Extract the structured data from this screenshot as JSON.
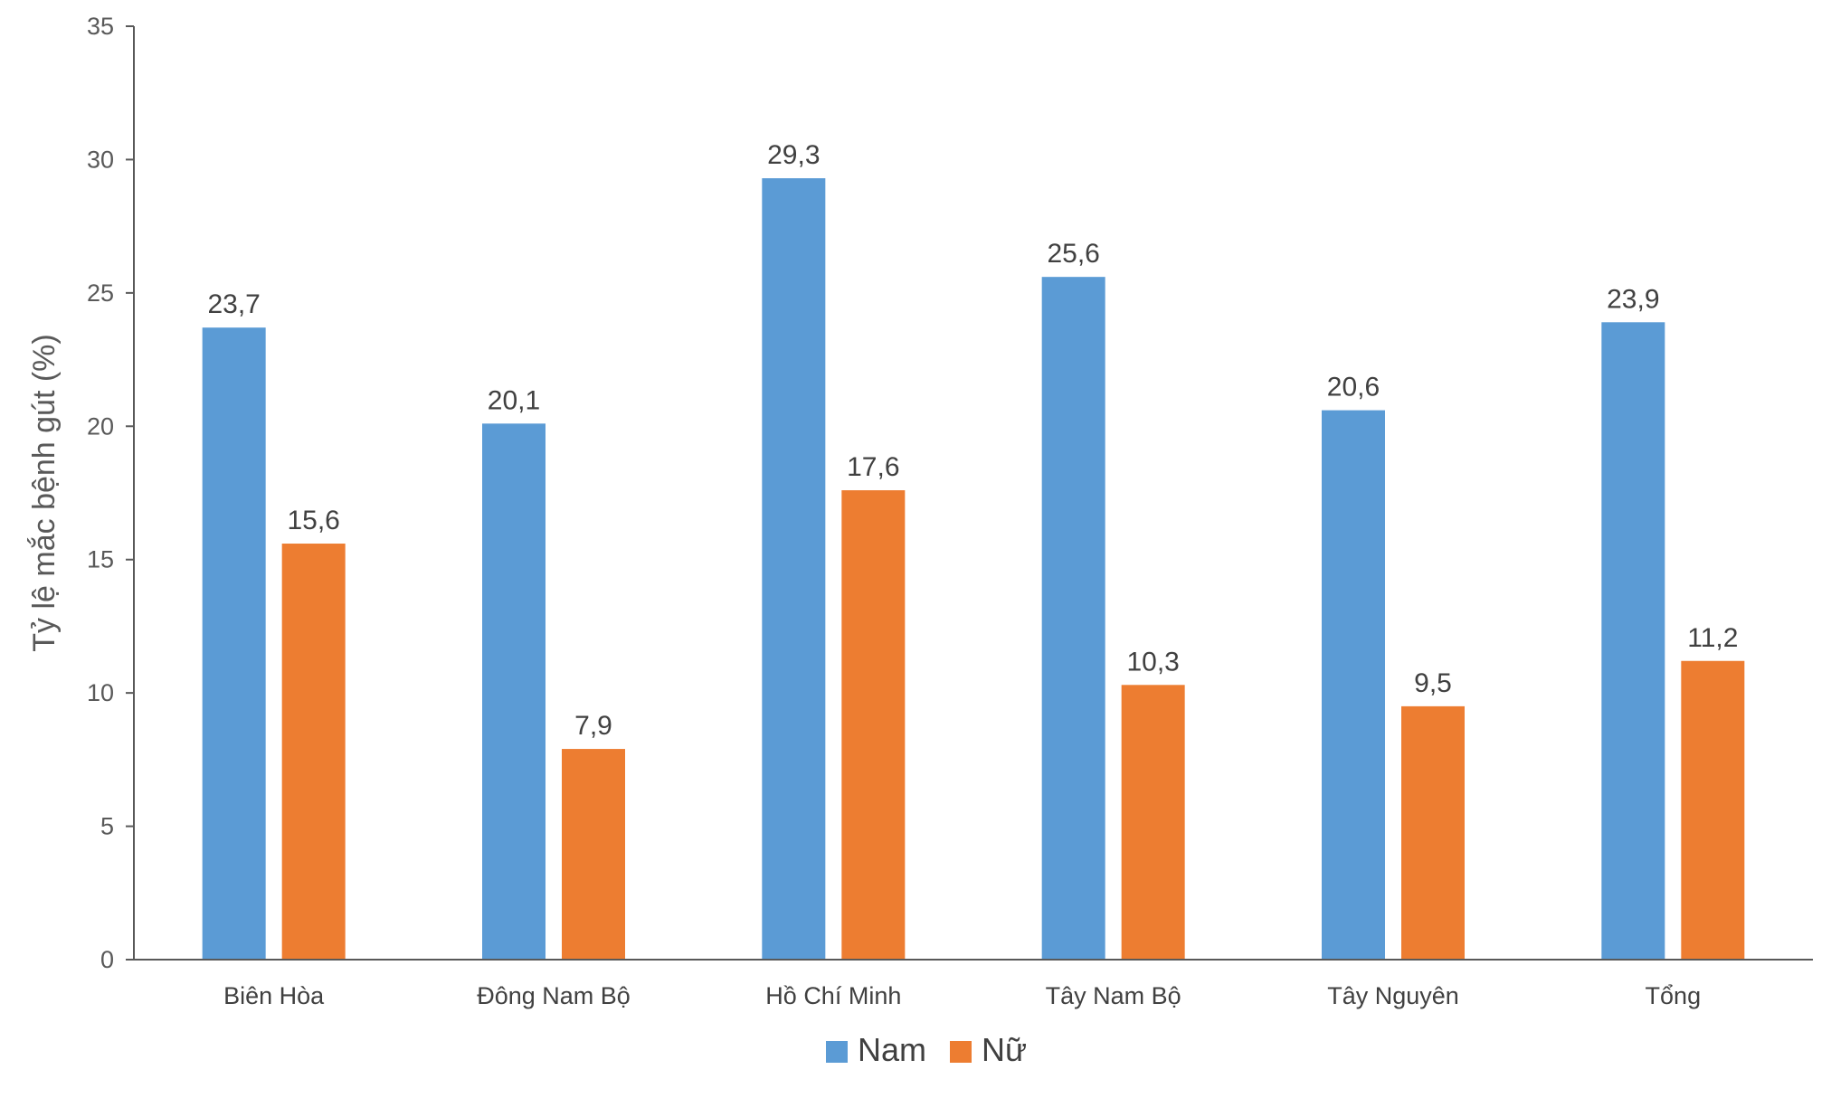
{
  "chart_data": {
    "type": "bar",
    "title": "",
    "xlabel": "",
    "ylabel": "Tỷ lệ mắc bệnh gút (%)",
    "ylim": [
      0,
      35
    ],
    "yticks": [
      0,
      5,
      10,
      15,
      20,
      25,
      30,
      35
    ],
    "grid": false,
    "legend_position": "bottom",
    "categories": [
      "Biên Hòa",
      "Đông Nam Bộ",
      "Hồ Chí Minh",
      "Tây Nam Bộ",
      "Tây Nguyên",
      "Tổng"
    ],
    "series": [
      {
        "name": "Nam",
        "color": "#5B9BD5",
        "values": [
          23.7,
          20.1,
          29.3,
          25.6,
          20.6,
          23.9
        ],
        "labels": [
          "23,7",
          "20,1",
          "29,3",
          "25,6",
          "20,6",
          "23,9"
        ]
      },
      {
        "name": "Nữ",
        "color": "#ED7D31",
        "values": [
          15.6,
          7.9,
          17.6,
          10.3,
          9.5,
          11.2
        ],
        "labels": [
          "15,6",
          "7,9",
          "17,6",
          "10,3",
          "9,5",
          "11,2"
        ]
      }
    ]
  }
}
